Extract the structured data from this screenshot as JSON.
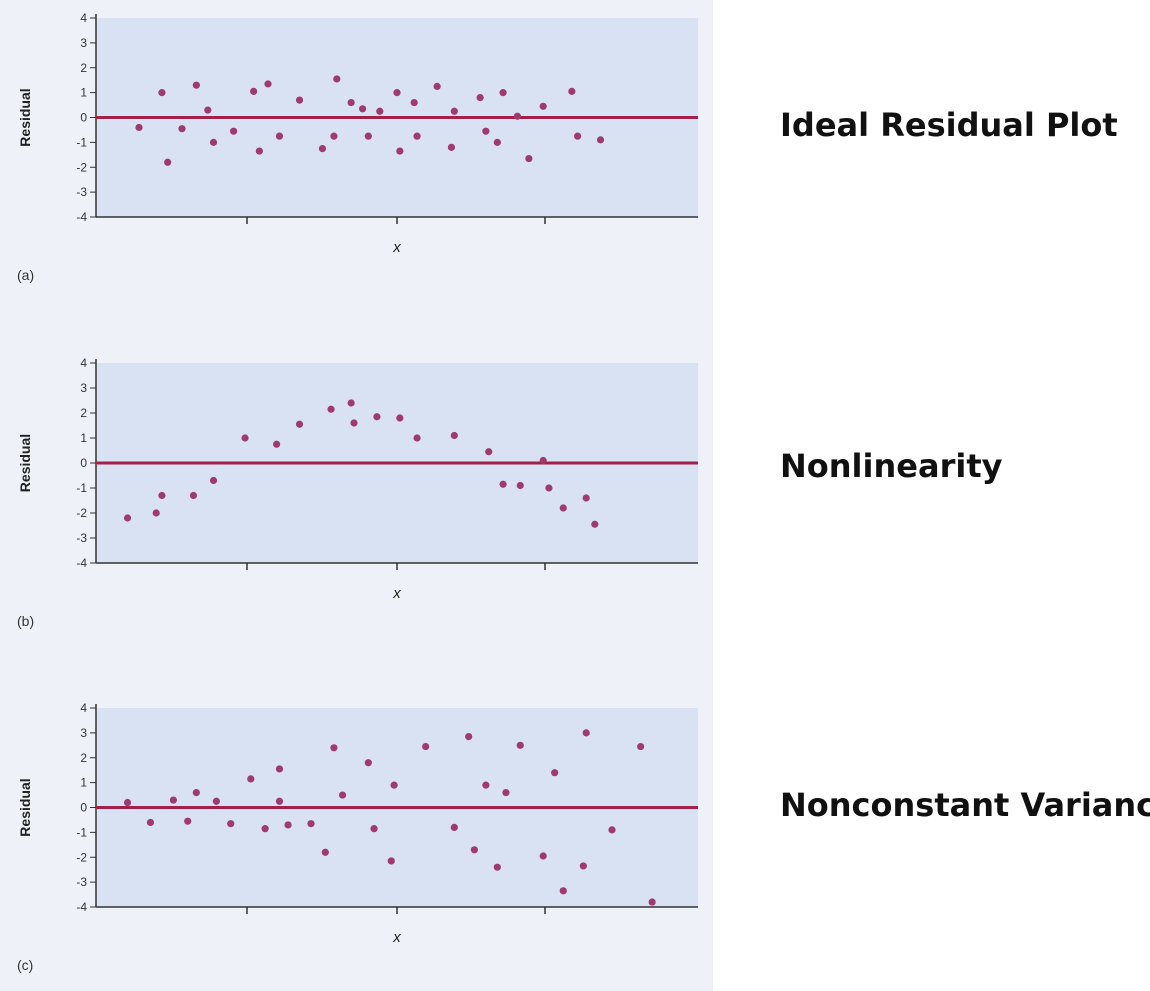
{
  "captions": [
    "Ideal Residual Plot",
    "Nonlinearity",
    "Nonconstant Variance"
  ],
  "colors": {
    "panel_background": "#eef2f8",
    "plot_background": "#d9e2f2",
    "zero_line": "#a3204a",
    "points": "#9e3a6e",
    "axis": "#333333"
  },
  "chart_data": [
    {
      "type": "scatter",
      "panel_label": "(a)",
      "xlabel": "x",
      "ylabel": "Residual",
      "ylim": [
        -4,
        4
      ],
      "yticks": [
        "4",
        "3",
        "2",
        "1",
        "0",
        "-1",
        "-2",
        "-3",
        "-4"
      ],
      "reference_line": 0,
      "points": [
        {
          "x": 0.5,
          "y": -0.4
        },
        {
          "x": 1.3,
          "y": 1.0
        },
        {
          "x": 1.5,
          "y": -1.8
        },
        {
          "x": 2.0,
          "y": -0.45
        },
        {
          "x": 2.5,
          "y": 1.3
        },
        {
          "x": 2.9,
          "y": 0.3
        },
        {
          "x": 3.1,
          "y": -1.0
        },
        {
          "x": 3.8,
          "y": -0.55
        },
        {
          "x": 4.5,
          "y": 1.05
        },
        {
          "x": 4.7,
          "y": -1.35
        },
        {
          "x": 5.0,
          "y": 1.35
        },
        {
          "x": 5.4,
          "y": -0.75
        },
        {
          "x": 6.1,
          "y": 0.7
        },
        {
          "x": 6.9,
          "y": -1.25
        },
        {
          "x": 7.3,
          "y": -0.75
        },
        {
          "x": 7.4,
          "y": 1.55
        },
        {
          "x": 7.9,
          "y": 0.6
        },
        {
          "x": 8.3,
          "y": 0.35
        },
        {
          "x": 8.5,
          "y": -0.75
        },
        {
          "x": 8.9,
          "y": 0.25
        },
        {
          "x": 9.5,
          "y": 1.0
        },
        {
          "x": 9.6,
          "y": -1.35
        },
        {
          "x": 10.1,
          "y": 0.6
        },
        {
          "x": 10.2,
          "y": -0.75
        },
        {
          "x": 10.9,
          "y": 1.25
        },
        {
          "x": 11.4,
          "y": -1.2
        },
        {
          "x": 11.5,
          "y": 0.25
        },
        {
          "x": 12.4,
          "y": 0.8
        },
        {
          "x": 12.6,
          "y": -0.55
        },
        {
          "x": 13.0,
          "y": -1.0
        },
        {
          "x": 13.2,
          "y": 1.0
        },
        {
          "x": 13.7,
          "y": 0.05
        },
        {
          "x": 14.1,
          "y": -1.65
        },
        {
          "x": 14.6,
          "y": 0.45
        },
        {
          "x": 15.6,
          "y": 1.05
        },
        {
          "x": 15.8,
          "y": -0.75
        },
        {
          "x": 16.6,
          "y": -0.9
        }
      ]
    },
    {
      "type": "scatter",
      "panel_label": "(b)",
      "xlabel": "x",
      "ylabel": "Residual",
      "ylim": [
        -4,
        4
      ],
      "yticks": [
        "4",
        "3",
        "2",
        "1",
        "0",
        "-1",
        "-2",
        "-3",
        "-4"
      ],
      "reference_line": 0,
      "points": [
        {
          "x": 0.1,
          "y": -2.2
        },
        {
          "x": 1.1,
          "y": -2.0
        },
        {
          "x": 1.3,
          "y": -1.3
        },
        {
          "x": 2.4,
          "y": -1.3
        },
        {
          "x": 3.1,
          "y": -0.7
        },
        {
          "x": 4.2,
          "y": 1.0
        },
        {
          "x": 5.3,
          "y": 0.75
        },
        {
          "x": 6.1,
          "y": 1.55
        },
        {
          "x": 7.2,
          "y": 2.15
        },
        {
          "x": 7.9,
          "y": 2.4
        },
        {
          "x": 8.0,
          "y": 1.6
        },
        {
          "x": 8.8,
          "y": 1.85
        },
        {
          "x": 9.6,
          "y": 1.8
        },
        {
          "x": 10.2,
          "y": 1.0
        },
        {
          "x": 11.5,
          "y": 1.1
        },
        {
          "x": 12.7,
          "y": 0.45
        },
        {
          "x": 13.2,
          "y": -0.85
        },
        {
          "x": 13.8,
          "y": -0.9
        },
        {
          "x": 14.6,
          "y": 0.1
        },
        {
          "x": 14.8,
          "y": -1.0
        },
        {
          "x": 15.3,
          "y": -1.8
        },
        {
          "x": 16.1,
          "y": -1.4
        },
        {
          "x": 16.4,
          "y": -2.45
        }
      ]
    },
    {
      "type": "scatter",
      "panel_label": "(c)",
      "xlabel": "x",
      "ylabel": "Residual",
      "ylim": [
        -4,
        4
      ],
      "yticks": [
        "4",
        "3",
        "2",
        "1",
        "0",
        "-1",
        "-2",
        "-3",
        "-4"
      ],
      "reference_line": 0,
      "points": [
        {
          "x": 0.1,
          "y": 0.2
        },
        {
          "x": 0.9,
          "y": -0.6
        },
        {
          "x": 1.7,
          "y": 0.3
        },
        {
          "x": 2.2,
          "y": -0.55
        },
        {
          "x": 2.5,
          "y": 0.6
        },
        {
          "x": 3.2,
          "y": 0.25
        },
        {
          "x": 3.7,
          "y": -0.65
        },
        {
          "x": 4.4,
          "y": 1.15
        },
        {
          "x": 4.9,
          "y": -0.85
        },
        {
          "x": 5.4,
          "y": 1.55
        },
        {
          "x": 5.4,
          "y": 0.25
        },
        {
          "x": 5.7,
          "y": -0.7
        },
        {
          "x": 6.5,
          "y": -0.65
        },
        {
          "x": 7.0,
          "y": -1.8
        },
        {
          "x": 7.3,
          "y": 2.4
        },
        {
          "x": 7.6,
          "y": 0.5
        },
        {
          "x": 8.5,
          "y": 1.8
        },
        {
          "x": 8.7,
          "y": -0.85
        },
        {
          "x": 9.3,
          "y": -2.15
        },
        {
          "x": 9.4,
          "y": 0.9
        },
        {
          "x": 10.5,
          "y": 2.45
        },
        {
          "x": 11.5,
          "y": -0.8
        },
        {
          "x": 12.0,
          "y": 2.85
        },
        {
          "x": 12.2,
          "y": -1.7
        },
        {
          "x": 12.6,
          "y": 0.9
        },
        {
          "x": 13.0,
          "y": -2.4
        },
        {
          "x": 13.3,
          "y": 0.6
        },
        {
          "x": 13.8,
          "y": 2.5
        },
        {
          "x": 14.6,
          "y": -1.95
        },
        {
          "x": 15.0,
          "y": 1.4
        },
        {
          "x": 15.3,
          "y": -3.35
        },
        {
          "x": 16.0,
          "y": -2.35
        },
        {
          "x": 16.1,
          "y": 3.0
        },
        {
          "x": 17.0,
          "y": -0.9
        },
        {
          "x": 18.0,
          "y": 2.45
        },
        {
          "x": 18.4,
          "y": -3.8
        }
      ]
    }
  ]
}
